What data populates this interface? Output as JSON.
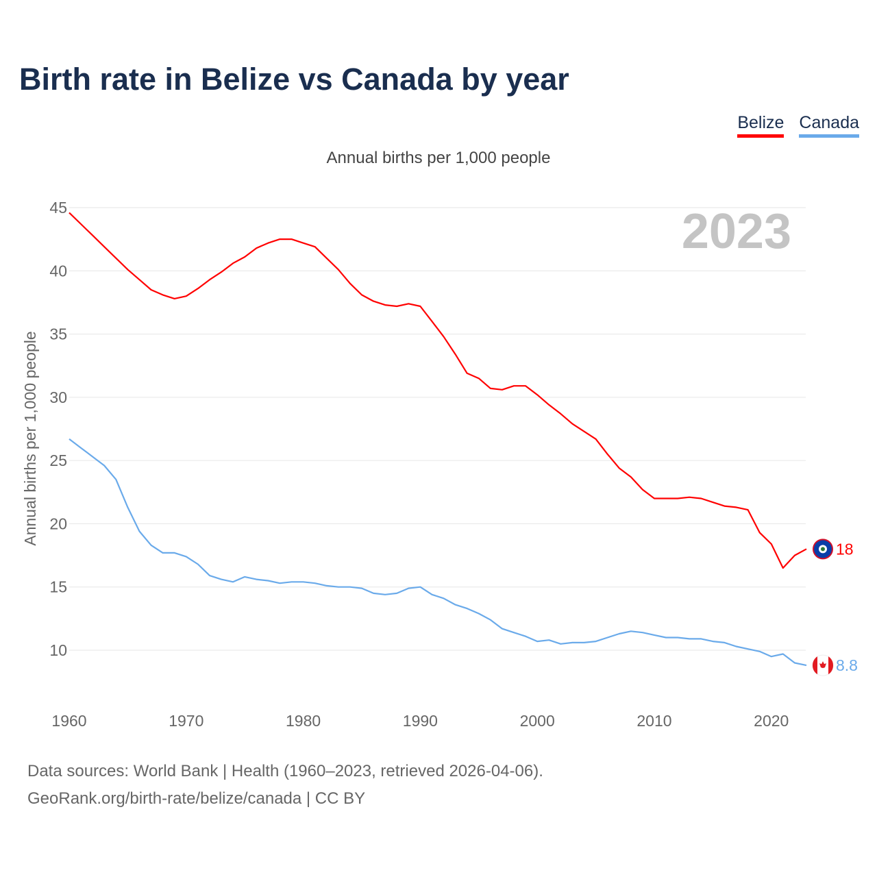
{
  "title": "Birth rate in Belize vs Canada by year",
  "legend": [
    {
      "label": "Belize",
      "color": "#ff0000"
    },
    {
      "label": "Canada",
      "color": "#6aaaea"
    }
  ],
  "subtitle": "Annual births per 1,000 people",
  "year_watermark": "2023",
  "footer": {
    "line1": "Data sources: World Bank | Health (1960–2023, retrieved 2026-04-06).",
    "line2": "GeoRank.org/birth-rate/belize/canada | CC BY"
  },
  "chart_data": {
    "type": "line",
    "title": "Birth rate in Belize vs Canada by year",
    "xlabel": "",
    "ylabel": "Annual births per 1,000 people",
    "xlim": [
      1960,
      2023
    ],
    "ylim": [
      7,
      45
    ],
    "x_ticks": [
      1960,
      1970,
      1980,
      1990,
      2000,
      2010,
      2020
    ],
    "y_ticks": [
      10,
      15,
      20,
      25,
      30,
      35,
      40,
      45
    ],
    "grid": true,
    "legend_position": "top-right",
    "x_start": 1960,
    "series": [
      {
        "name": "Belize",
        "color": "#ff0000",
        "end_label": "18",
        "values": [
          44.6,
          43.7,
          42.8,
          41.9,
          41.0,
          40.1,
          39.3,
          38.5,
          38.1,
          37.8,
          38.0,
          38.6,
          39.3,
          39.9,
          40.6,
          41.1,
          41.8,
          42.2,
          42.5,
          42.5,
          42.2,
          41.9,
          41.0,
          40.1,
          39.0,
          38.1,
          37.6,
          37.3,
          37.2,
          37.4,
          37.2,
          36.0,
          34.8,
          33.4,
          31.9,
          31.5,
          30.7,
          30.6,
          30.9,
          30.9,
          30.2,
          29.4,
          28.7,
          27.9,
          27.3,
          26.7,
          25.5,
          24.4,
          23.7,
          22.7,
          22.0,
          22.0,
          22.0,
          22.1,
          22.0,
          21.7,
          21.4,
          21.3,
          21.1,
          19.3,
          18.4,
          16.5,
          17.5,
          18.0
        ]
      },
      {
        "name": "Canada",
        "color": "#6aaaea",
        "end_label": "8.8",
        "values": [
          26.7,
          26.0,
          25.3,
          24.6,
          23.5,
          21.3,
          19.4,
          18.3,
          17.7,
          17.7,
          17.4,
          16.8,
          15.9,
          15.6,
          15.4,
          15.8,
          15.6,
          15.5,
          15.3,
          15.4,
          15.4,
          15.3,
          15.1,
          15.0,
          15.0,
          14.9,
          14.5,
          14.4,
          14.5,
          14.9,
          15.0,
          14.4,
          14.1,
          13.6,
          13.3,
          12.9,
          12.4,
          11.7,
          11.4,
          11.1,
          10.7,
          10.8,
          10.5,
          10.6,
          10.6,
          10.7,
          11.0,
          11.3,
          11.5,
          11.4,
          11.2,
          11.0,
          11.0,
          10.9,
          10.9,
          10.7,
          10.6,
          10.3,
          10.1,
          9.9,
          9.5,
          9.7,
          9.0,
          8.8
        ]
      }
    ]
  }
}
